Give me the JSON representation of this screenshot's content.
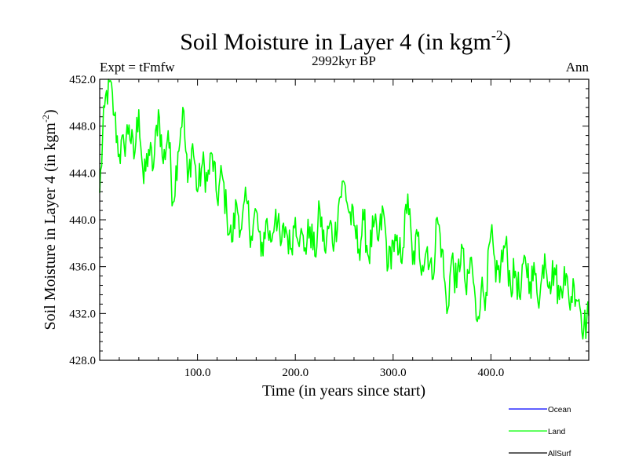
{
  "chart_data": {
    "type": "line",
    "title": "Soil Moisture in Layer 4 (in kgm",
    "title_superscript": "-2",
    "title_close": ")",
    "subtitle_left": "Expt = tFmfw",
    "subtitle_center": "2992kyr BP",
    "subtitle_right": "Ann",
    "xlabel": "Time (in years since start)",
    "ylabel": "Soil Moisture in Layer 4 (in kgm",
    "ylabel_superscript": "-2",
    "ylabel_close": ")",
    "xlim": [
      0,
      500
    ],
    "ylim": [
      428,
      452
    ],
    "xticks": [
      100,
      200,
      300,
      400
    ],
    "xtick_labels": [
      "100.0",
      "200.0",
      "300.0",
      "400.0"
    ],
    "yticks": [
      428,
      432,
      436,
      440,
      444,
      448,
      452
    ],
    "ytick_labels": [
      "428.0",
      "432.0",
      "436.0",
      "440.0",
      "444.0",
      "448.0",
      "452.0"
    ],
    "legend": [
      {
        "name": "Ocean",
        "color": "#0000ff"
      },
      {
        "name": "Land",
        "color": "#00ff00"
      },
      {
        "name": "AllSurf",
        "color": "#000000"
      }
    ],
    "series": [
      {
        "name": "Land",
        "color": "#00ff00",
        "x": [
          0,
          5,
          10,
          15,
          20,
          25,
          30,
          35,
          40,
          45,
          50,
          55,
          60,
          65,
          70,
          75,
          80,
          85,
          90,
          95,
          100,
          105,
          110,
          115,
          120,
          125,
          130,
          135,
          140,
          145,
          150,
          155,
          160,
          165,
          170,
          175,
          180,
          185,
          190,
          195,
          200,
          205,
          210,
          215,
          220,
          225,
          230,
          235,
          240,
          245,
          250,
          255,
          260,
          265,
          270,
          275,
          280,
          285,
          290,
          295,
          300,
          305,
          310,
          315,
          320,
          325,
          330,
          335,
          340,
          345,
          350,
          355,
          360,
          365,
          370,
          375,
          380,
          385,
          390,
          395,
          400,
          405,
          410,
          415,
          420,
          425,
          430,
          435,
          440,
          445,
          450,
          455,
          460,
          465,
          470,
          475,
          480,
          485,
          490,
          495,
          500
        ],
        "values": [
          442.3,
          449.6,
          451.8,
          448.9,
          445.6,
          446.3,
          448.1,
          445.2,
          449.4,
          443.1,
          446.0,
          444.5,
          449.4,
          444.8,
          447.6,
          441.5,
          445.8,
          449.6,
          443.2,
          446.5,
          442.4,
          444.8,
          443.3,
          445.6,
          441.8,
          443.9,
          440.5,
          438.1,
          441.4,
          439.2,
          441.7,
          438.6,
          440.8,
          436.9,
          439.9,
          438.1,
          440.9,
          437.8,
          439.4,
          437.5,
          440.2,
          438.6,
          437.6,
          439.4,
          436.9,
          440.9,
          437.4,
          439.6,
          438.2,
          441.8,
          443.2,
          440.6,
          439.5,
          437.5,
          440.0,
          436.8,
          439.4,
          438.2,
          440.8,
          436.0,
          438.2,
          437.0,
          437.6,
          442.2,
          436.2,
          438.6,
          436.1,
          437.7,
          434.9,
          440.2,
          437.5,
          432.0,
          436.8,
          434.2,
          437.9,
          433.6,
          436.8,
          431.5,
          434.0,
          433.8,
          438.9,
          434.7,
          436.1,
          438.0,
          434.4,
          435.6,
          433.2,
          436.8,
          434.7,
          435.3,
          433.4,
          437.1,
          434.7,
          435.9,
          433.2,
          436.0,
          432.9,
          434.4,
          433.2,
          430.8,
          431.8
        ]
      }
    ]
  }
}
